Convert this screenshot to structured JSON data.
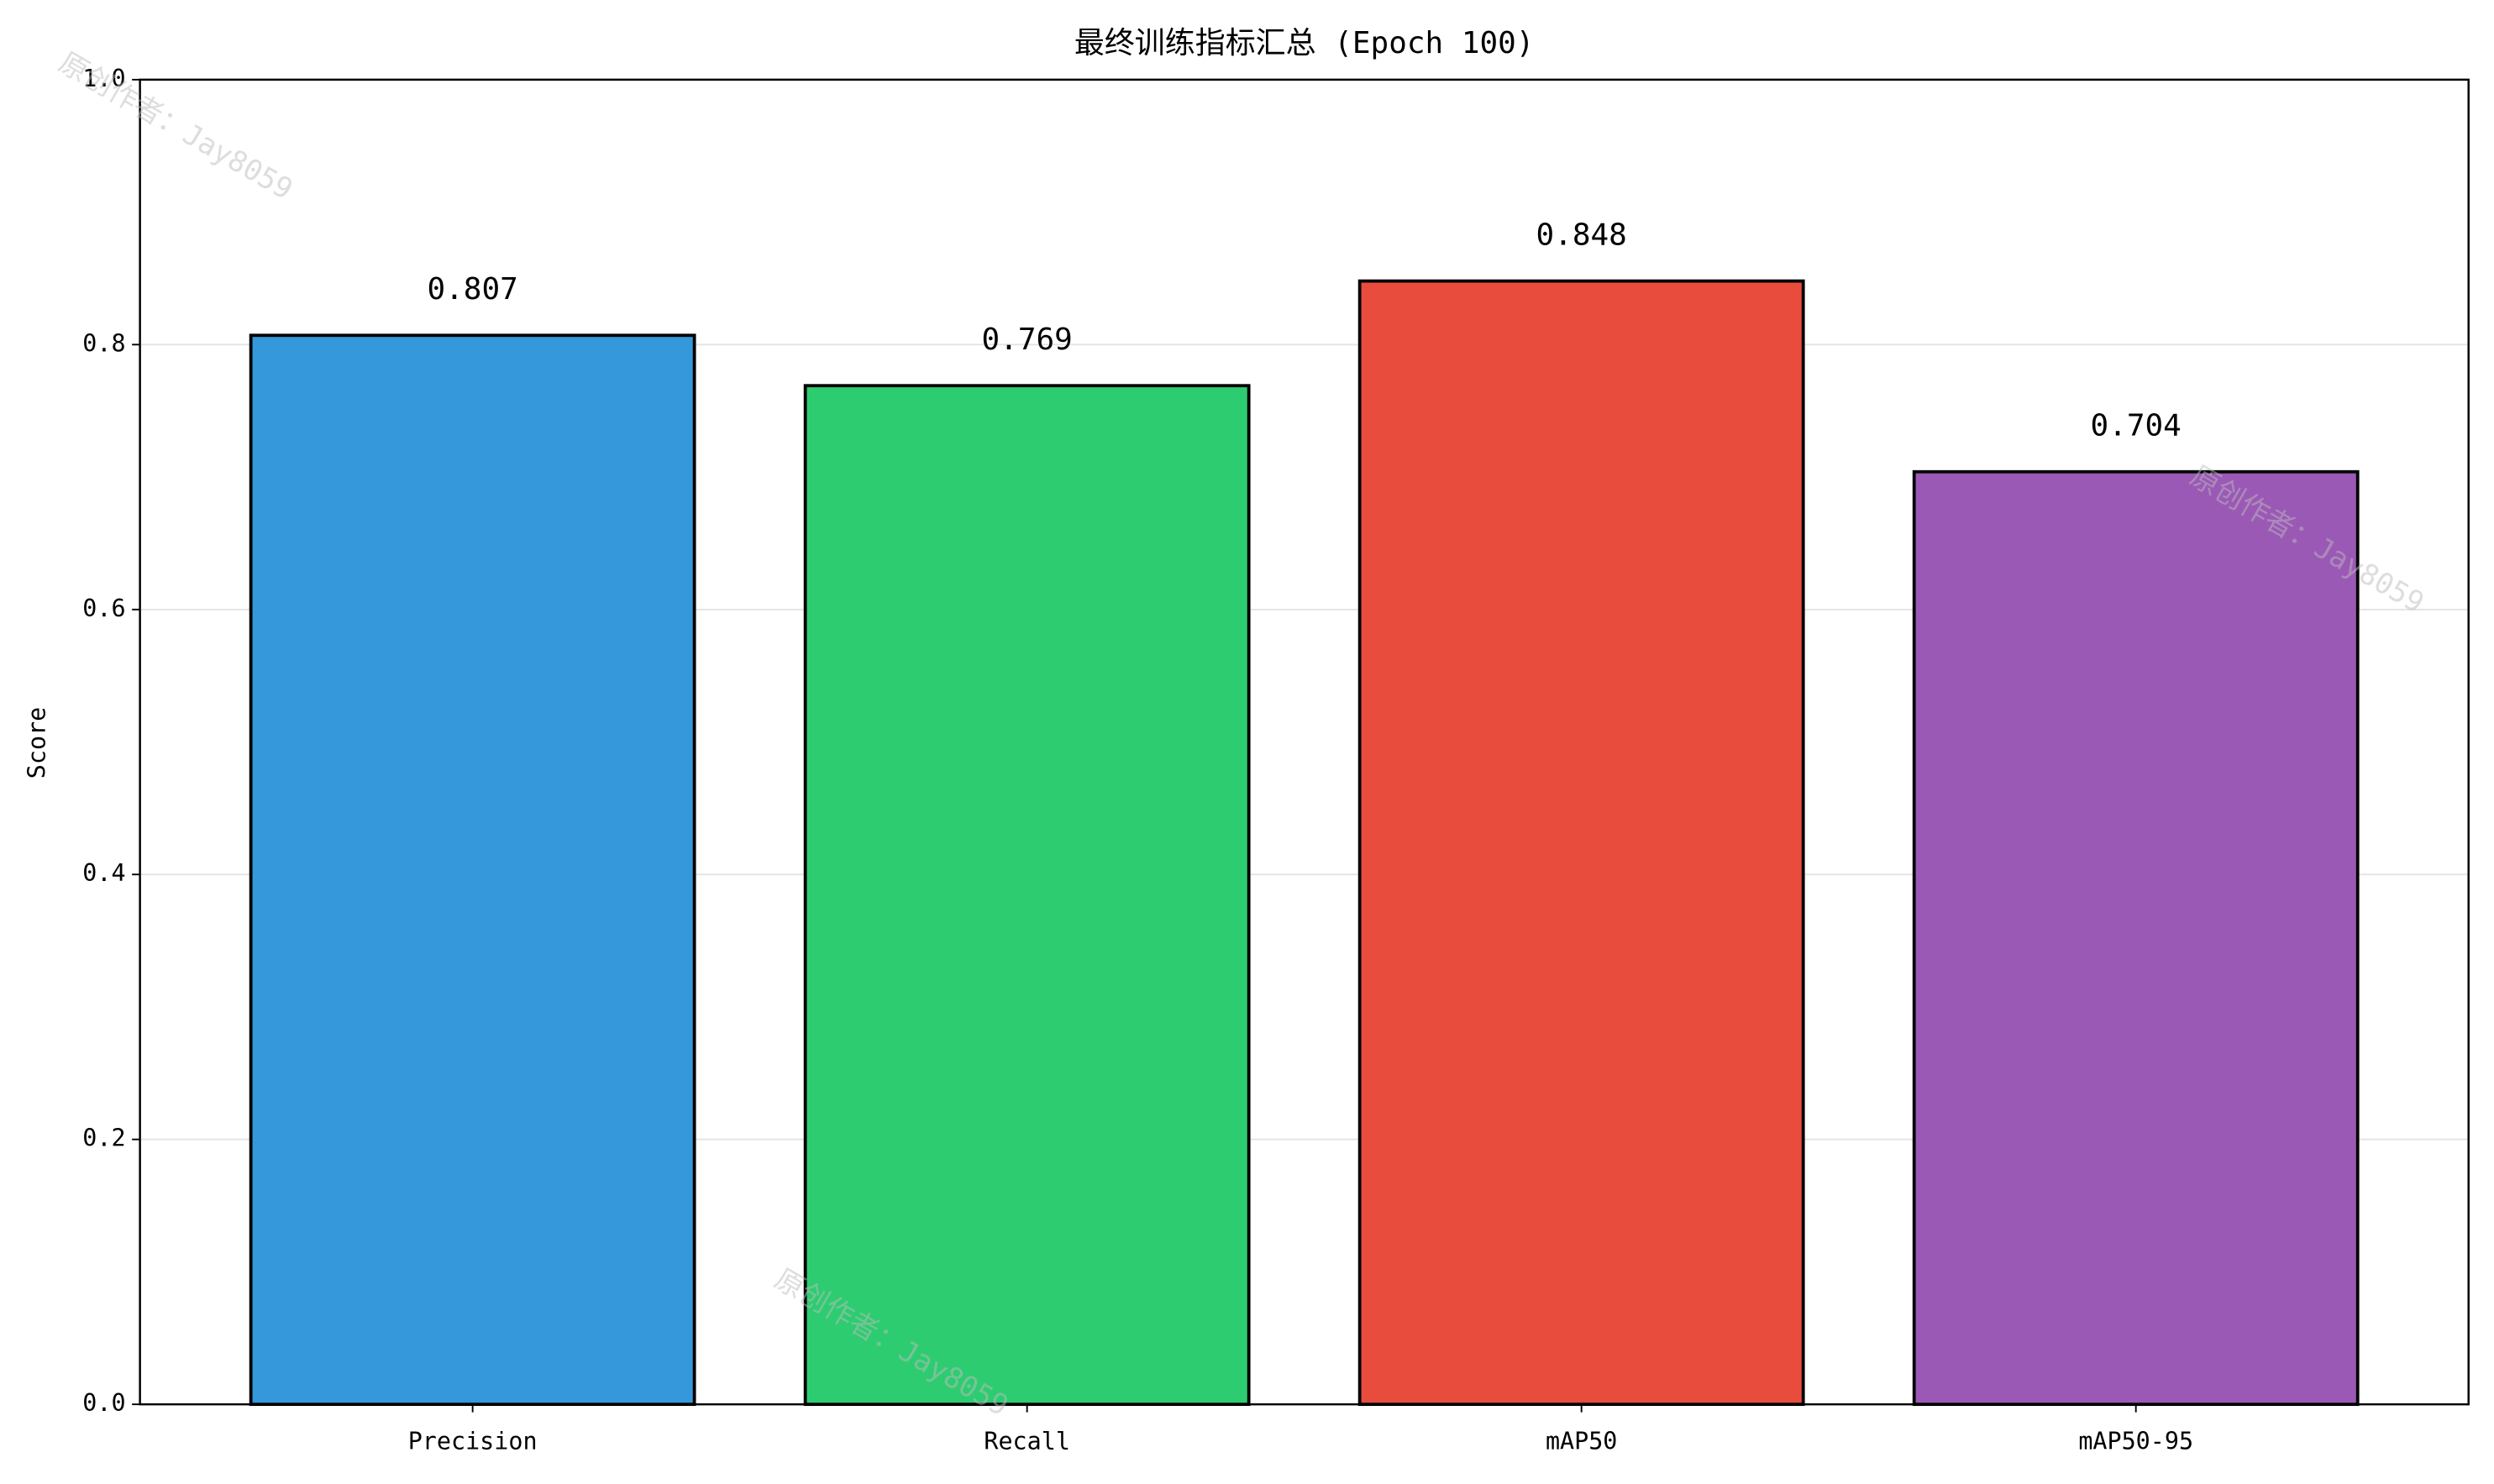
{
  "chart_data": {
    "type": "bar",
    "title": "最终训练指标汇总 (Epoch 100)",
    "ylabel": "Score",
    "categories": [
      "Precision",
      "Recall",
      "mAP50",
      "mAP50-95"
    ],
    "values": [
      0.807,
      0.769,
      0.848,
      0.704
    ],
    "colors": [
      "#3498db",
      "#2ecc71",
      "#e74c3c",
      "#9b59b6"
    ],
    "ylim": [
      0,
      1
    ],
    "yticks": [
      {
        "value": 0,
        "label": "0.0"
      },
      0.2,
      0.4,
      0.6,
      0.8,
      {
        "value": 1,
        "label": "1.0"
      }
    ],
    "grid": true,
    "watermark": "原创作者：Jay8059"
  }
}
